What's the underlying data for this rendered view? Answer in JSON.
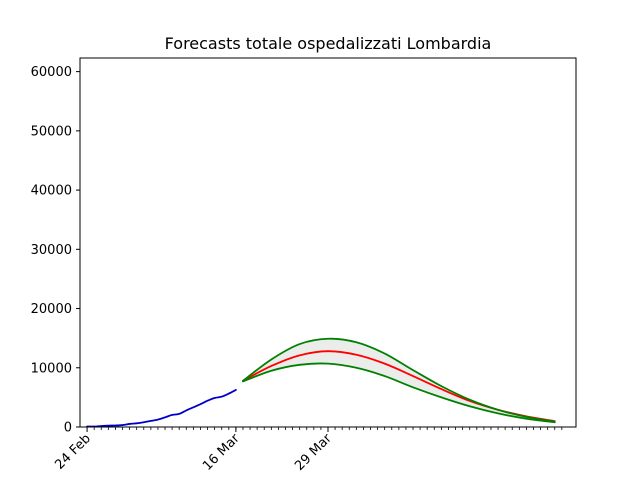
{
  "chart_data": {
    "type": "line",
    "title": "Forecasts totale ospedalizzati Lombardia",
    "xlabel": "",
    "ylabel": "",
    "xlim": [
      "2020-02-23",
      "2020-05-03"
    ],
    "ylim": [
      0,
      62300
    ],
    "y_ticks": [
      0,
      10000,
      20000,
      30000,
      40000,
      50000,
      60000
    ],
    "x_ticks": [
      {
        "date": "2020-02-24",
        "label": "24 Feb"
      },
      {
        "date": "2020-03-16",
        "label": "16 Mar"
      },
      {
        "date": "2020-03-29",
        "label": "29 Mar"
      }
    ],
    "grid": false,
    "colors": {
      "observed": "#0000cc",
      "forecast": "#ff0000",
      "bounds": "#008000",
      "band": "#e8ebe8"
    },
    "series": [
      {
        "role": "observed",
        "x": [
          "2020-02-24",
          "2020-02-25",
          "2020-02-26",
          "2020-02-27",
          "2020-02-28",
          "2020-02-29",
          "2020-03-01",
          "2020-03-02",
          "2020-03-03",
          "2020-03-04",
          "2020-03-05",
          "2020-03-06",
          "2020-03-07",
          "2020-03-08",
          "2020-03-09",
          "2020-03-10",
          "2020-03-11",
          "2020-03-12",
          "2020-03-13",
          "2020-03-14",
          "2020-03-15",
          "2020-03-16"
        ],
        "values": [
          76,
          79,
          172,
          235,
          256,
          327,
          515,
          621,
          798,
          1032,
          1254,
          1621,
          2040,
          2217,
          2802,
          3319,
          3852,
          4435,
          4898,
          5123,
          5640,
          6252
        ]
      },
      {
        "role": "forecast",
        "x": [
          "2020-03-17",
          "2020-03-21",
          "2020-03-25",
          "2020-03-29",
          "2020-04-02",
          "2020-04-06",
          "2020-04-10",
          "2020-04-14",
          "2020-04-18",
          "2020-04-22",
          "2020-04-26",
          "2020-04-30"
        ],
        "values": [
          7800,
          10300,
          12100,
          12800,
          12200,
          10700,
          8600,
          6400,
          4400,
          2900,
          1800,
          1000
        ]
      },
      {
        "role": "upper",
        "x": [
          "2020-03-17",
          "2020-03-21",
          "2020-03-25",
          "2020-03-29",
          "2020-04-02",
          "2020-04-06",
          "2020-04-10",
          "2020-04-14",
          "2020-04-18",
          "2020-04-22",
          "2020-04-26",
          "2020-04-30"
        ],
        "values": [
          7800,
          11400,
          14000,
          14900,
          14300,
          12400,
          9600,
          6900,
          4600,
          2900,
          1700,
          900
        ]
      },
      {
        "role": "lower",
        "x": [
          "2020-03-17",
          "2020-03-21",
          "2020-03-25",
          "2020-03-29",
          "2020-04-02",
          "2020-04-06",
          "2020-04-10",
          "2020-04-14",
          "2020-04-18",
          "2020-04-22",
          "2020-04-26",
          "2020-04-30"
        ],
        "values": [
          7700,
          9500,
          10500,
          10700,
          10000,
          8600,
          6700,
          5000,
          3500,
          2300,
          1400,
          800
        ]
      }
    ]
  }
}
